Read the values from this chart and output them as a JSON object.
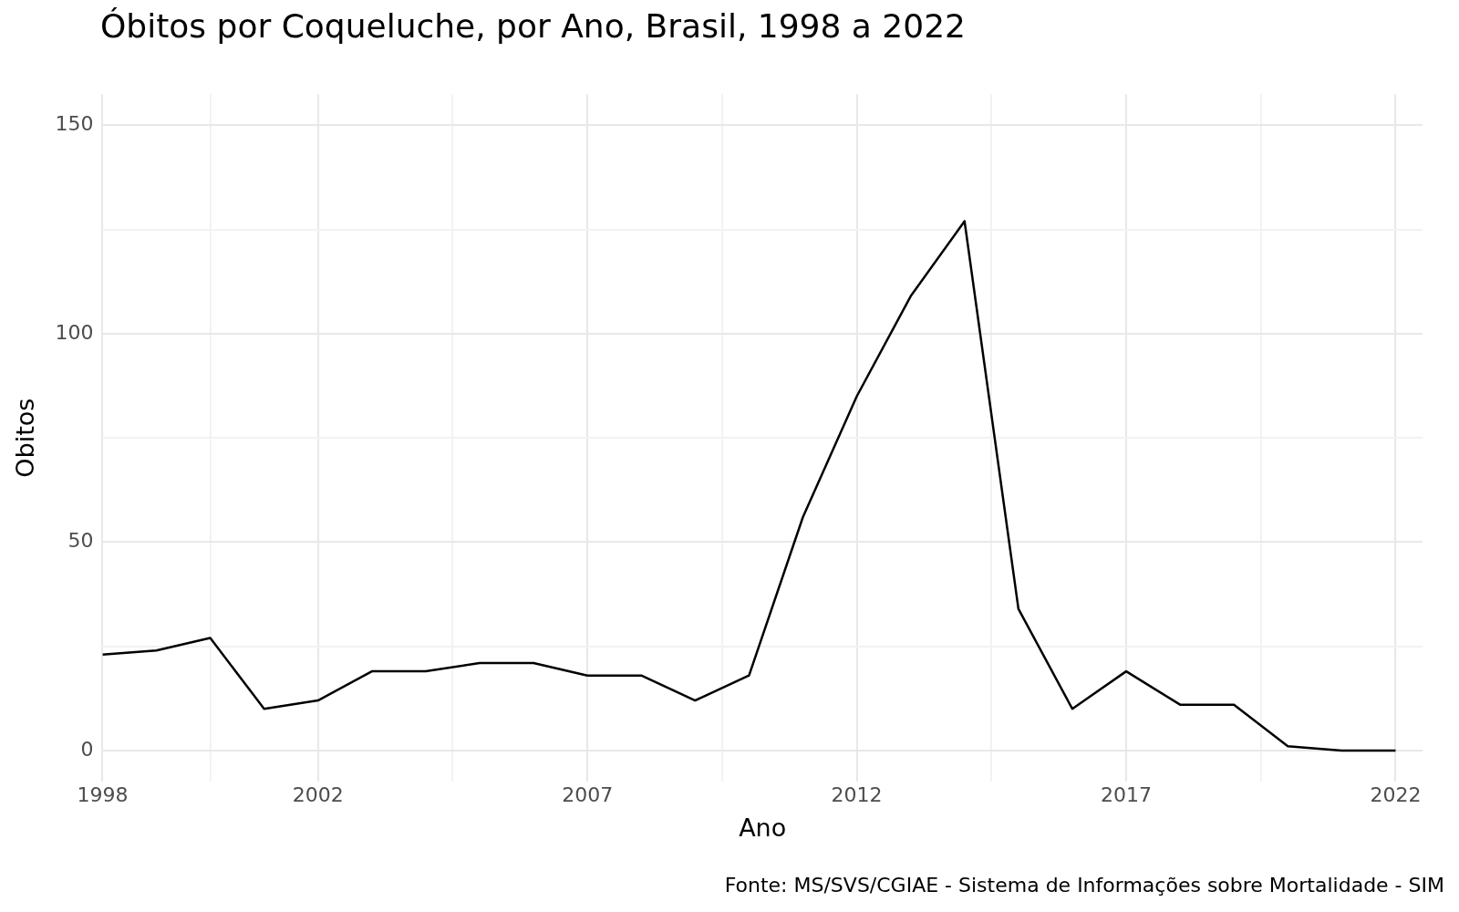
{
  "chart_data": {
    "type": "line",
    "title": "Óbitos por Coqueluche, por Ano, Brasil, 1998 a 2022",
    "xlabel": "Ano",
    "ylabel": "Obitos",
    "annotations": [
      "Fonte: MS/SVS/CGIAE - Sistema de Informações sobre Mortalidade - SIM"
    ],
    "x": [
      1998,
      1999,
      2000,
      2001,
      2002,
      2003,
      2004,
      2005,
      2006,
      2007,
      2008,
      2009,
      2010,
      2011,
      2012,
      2013,
      2014,
      2015,
      2016,
      2017,
      2018,
      2019,
      2020,
      2021,
      2022
    ],
    "series": [
      {
        "color": "#000000",
        "values": [
          23,
          24,
          27,
          10,
          12,
          19,
          19,
          21,
          21,
          18,
          18,
          12,
          18,
          56,
          85,
          109,
          127,
          34,
          10,
          19,
          11,
          11,
          1,
          0,
          0
        ]
      }
    ],
    "xlim": [
      1998,
      2022.5
    ],
    "ylim": [
      -7.5,
      157.5
    ],
    "xticks": [
      1998,
      {
        "value": 2000,
        "label": null
      },
      2002,
      {
        "value": 2004.5,
        "label": null
      },
      2007,
      {
        "value": 2009.5,
        "label": null
      },
      2012,
      {
        "value": 2014.5,
        "label": null
      },
      2017,
      {
        "value": 2019.5,
        "label": null
      },
      2022
    ],
    "yticks": [
      0,
      {
        "value": 25,
        "label": null
      },
      50,
      {
        "value": 75,
        "label": null
      },
      100,
      {
        "value": 125,
        "label": null
      },
      150
    ],
    "grid": true,
    "legend": false,
    "marker": "none",
    "line_style": "solid"
  }
}
